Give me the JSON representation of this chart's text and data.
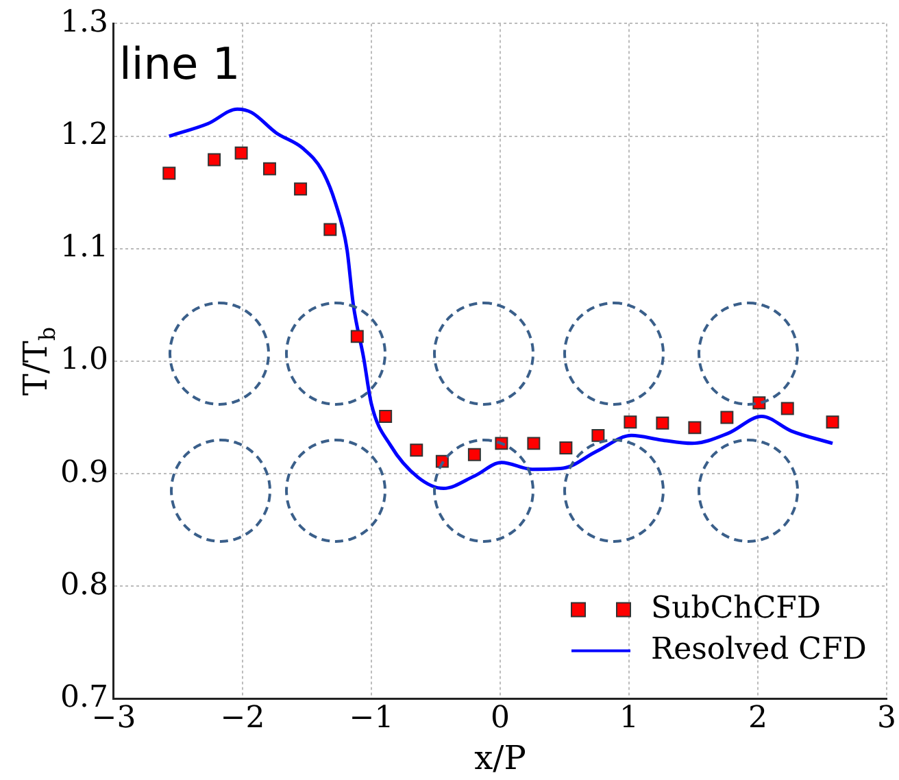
{
  "chart_data": {
    "type": "scatter",
    "xlabel": "x/P",
    "ylabel": "T/T$_{b}$",
    "annotations": [
      "line 1"
    ],
    "xlim": [
      -3,
      3
    ],
    "xticks": [
      -3,
      -2,
      -1,
      0,
      1,
      2,
      3
    ],
    "ylim": [
      0.7,
      1.3
    ],
    "yticks": [
      0.7,
      0.8,
      0.9,
      {
        "value": 1,
        "label": "1.0"
      },
      1.1,
      1.2,
      1.3
    ],
    "grid": true,
    "legend": "bottom right",
    "series": [
      {
        "name": "SubChCFD",
        "type": "scatter",
        "marker": "square",
        "color": "#ff0000",
        "x": [
          -2.57,
          -2.22,
          -2.01,
          -1.79,
          -1.55,
          -1.32,
          -1.11,
          -0.89,
          -0.65,
          -0.45,
          -0.2,
          0.01,
          0.26,
          0.51,
          0.76,
          1.01,
          1.26,
          1.51,
          1.76,
          2.01,
          2.23,
          2.58
        ],
        "values": [
          1.167,
          1.179,
          1.185,
          1.171,
          1.153,
          1.117,
          1.022,
          0.951,
          0.921,
          0.911,
          0.917,
          0.927,
          0.927,
          0.923,
          0.934,
          0.946,
          0.945,
          0.941,
          0.95,
          0.963,
          0.958,
          0.946
        ]
      },
      {
        "name": "Resolved CFD",
        "type": "line",
        "marker": "none",
        "line_style": "solid",
        "color": "#0000ff",
        "x": [
          -2.57,
          -2.27,
          -2.04,
          -1.93,
          -1.74,
          -1.53,
          -1.38,
          -1.28,
          -1.19,
          -1.14,
          -1.06,
          -1.0,
          -0.85,
          -0.64,
          -0.44,
          -0.2,
          0.01,
          0.25,
          0.49,
          0.75,
          1.02,
          1.25,
          1.49,
          1.77,
          2.03,
          2.26,
          2.58
        ],
        "values": [
          1.2,
          1.211,
          1.224,
          1.221,
          1.203,
          1.189,
          1.169,
          1.141,
          1.1,
          1.05,
          1.003,
          0.962,
          0.925,
          0.897,
          0.887,
          0.898,
          0.91,
          0.904,
          0.905,
          0.92,
          0.934,
          0.93,
          0.927,
          0.936,
          0.951,
          0.938,
          0.927
        ]
      }
    ]
  }
}
